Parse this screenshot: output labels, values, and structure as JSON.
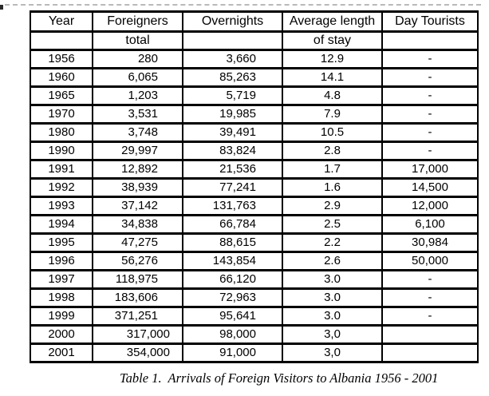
{
  "table": {
    "header_row1": [
      "Year",
      "Foreigners",
      "Overnights",
      "Average length",
      "Day Tourists"
    ],
    "header_row2": [
      "",
      "total",
      "",
      "of stay",
      ""
    ],
    "column_keys": [
      "year",
      "foreigners",
      "overnights",
      "avg_length_of_stay",
      "day_tourists"
    ],
    "rows": [
      {
        "year": "1956",
        "foreigners": "280",
        "overnights": "3,660",
        "avg_length_of_stay": "12.9",
        "day_tourists": "-"
      },
      {
        "year": "1960",
        "foreigners": "6,065",
        "overnights": "85,263",
        "avg_length_of_stay": "14.1",
        "day_tourists": "-"
      },
      {
        "year": "1965",
        "foreigners": "1,203",
        "overnights": "5,719",
        "avg_length_of_stay": "4.8",
        "day_tourists": "-"
      },
      {
        "year": "1970",
        "foreigners": "3,531",
        "overnights": "19,985",
        "avg_length_of_stay": "7.9",
        "day_tourists": "-"
      },
      {
        "year": "1980",
        "foreigners": "3,748",
        "overnights": "39,491",
        "avg_length_of_stay": "10.5",
        "day_tourists": "-"
      },
      {
        "year": "1990",
        "foreigners": "29,997",
        "overnights": "83,824",
        "avg_length_of_stay": "2.8",
        "day_tourists": "-"
      },
      {
        "year": "1991",
        "foreigners": "12,892",
        "overnights": "21,536",
        "avg_length_of_stay": "1.7",
        "day_tourists": "17,000"
      },
      {
        "year": "1992",
        "foreigners": "38,939",
        "overnights": "77,241",
        "avg_length_of_stay": "1.6",
        "day_tourists": "14,500"
      },
      {
        "year": "1993",
        "foreigners": "37,142",
        "overnights": "131,763",
        "avg_length_of_stay": "2.9",
        "day_tourists": "12,000"
      },
      {
        "year": "1994",
        "foreigners": "34,838",
        "overnights": "66,784",
        "avg_length_of_stay": "2.5",
        "day_tourists": "6,100"
      },
      {
        "year": "1995",
        "foreigners": "47,275",
        "overnights": "88,615",
        "avg_length_of_stay": "2.2",
        "day_tourists": "30,984"
      },
      {
        "year": "1996",
        "foreigners": "56,276",
        "overnights": "143,854",
        "avg_length_of_stay": "2.6",
        "day_tourists": "50,000"
      },
      {
        "year": "1997",
        "foreigners": "118,975",
        "overnights": "66,120",
        "avg_length_of_stay": "3.0",
        "day_tourists": "-"
      },
      {
        "year": "1998",
        "foreigners": "183,606",
        "overnights": "72,963",
        "avg_length_of_stay": "3.0",
        "day_tourists": "-"
      },
      {
        "year": "1999",
        "foreigners": "371,251",
        "overnights": "95,641",
        "avg_length_of_stay": "3.0",
        "day_tourists": "-"
      },
      {
        "year": "2000",
        "foreigners": "317,000",
        "overnights": "98,000",
        "avg_length_of_stay": "3,0",
        "day_tourists": ""
      },
      {
        "year": "2001",
        "foreigners": "354,000",
        "overnights": "91,000",
        "avg_length_of_stay": "3,0",
        "day_tourists": ""
      }
    ]
  },
  "caption": "Table 1.  Arrivals of Foreign Visitors to Albania 1956 - 2001"
}
